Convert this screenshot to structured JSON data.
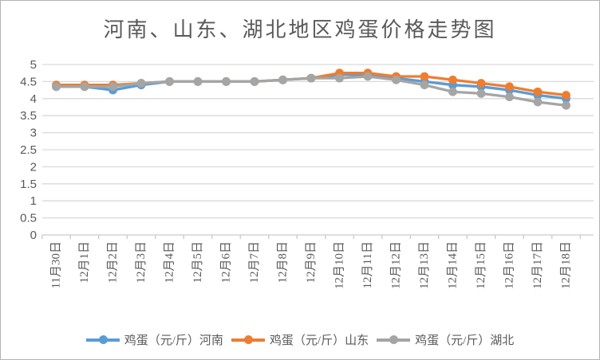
{
  "window": {
    "background": "#ffffff",
    "border_color": "#b2b2b2"
  },
  "chart_data": {
    "type": "line",
    "title": "河南、山东、湖北地区鸡蛋价格走势图",
    "xlabel": "",
    "ylabel": "",
    "ylim": [
      0,
      5
    ],
    "y_tick_step": 0.5,
    "y_tick_labels": [
      "0",
      "0.5",
      "1",
      "1.5",
      "2",
      "2.5",
      "3",
      "3.5",
      "4",
      "4.5",
      "5"
    ],
    "grid": true,
    "legend_position": "bottom",
    "gridline_color": "#d9d9d9",
    "axis_line_color": "#c9c9c9",
    "text_color": "#595959",
    "categories": [
      "11月30日",
      "12月1日",
      "12月2日",
      "12月3日",
      "12月4日",
      "12月5日",
      "12月6日",
      "12月7日",
      "12月8日",
      "12月9日",
      "12月10日",
      "12月11日",
      "12月12日",
      "12月13日",
      "12月14日",
      "12月15日",
      "12月16日",
      "12月17日",
      "12月18日"
    ],
    "series": [
      {
        "name": "鸡蛋（元/斤）河南",
        "region": "河南",
        "color": "#5B9BD5",
        "values": [
          4.35,
          4.35,
          4.25,
          4.4,
          4.5,
          4.5,
          4.5,
          4.5,
          4.55,
          4.6,
          4.7,
          4.7,
          4.6,
          4.5,
          4.4,
          4.35,
          4.25,
          4.1,
          4.0
        ]
      },
      {
        "name": "鸡蛋（元/斤）山东",
        "region": "山东",
        "color": "#ED7D31",
        "values": [
          4.4,
          4.4,
          4.4,
          4.45,
          4.5,
          4.5,
          4.5,
          4.5,
          4.55,
          4.6,
          4.75,
          4.75,
          4.65,
          4.65,
          4.55,
          4.45,
          4.35,
          4.2,
          4.1
        ]
      },
      {
        "name": "鸡蛋（元/斤）湖北",
        "region": "湖北",
        "color": "#A5A5A5",
        "values": [
          4.35,
          4.35,
          4.35,
          4.45,
          4.5,
          4.5,
          4.5,
          4.5,
          4.55,
          4.6,
          4.6,
          4.65,
          4.55,
          4.4,
          4.2,
          4.15,
          4.05,
          3.9,
          3.8
        ]
      }
    ]
  }
}
